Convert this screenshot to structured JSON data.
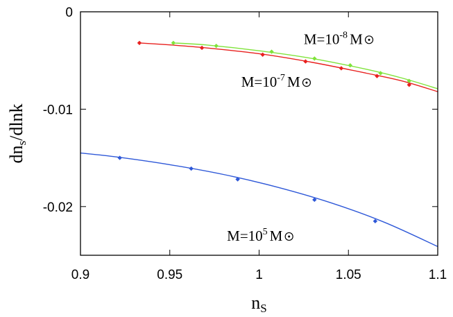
{
  "chart_data": {
    "type": "line",
    "title": "",
    "xlabel": {
      "main": "n",
      "sub": "S"
    },
    "ylabel": {
      "main": "dn",
      "sub": "s",
      "rest": "/dlnk"
    },
    "xlim": [
      0.9,
      1.1
    ],
    "ylim": [
      -0.025,
      0
    ],
    "grid": false,
    "xticks": [
      {
        "value": 0.9,
        "label": "0.9"
      },
      {
        "value": 0.95,
        "label": "0.95"
      },
      {
        "value": 1.0,
        "label": "1"
      },
      {
        "value": 1.05,
        "label": "1.05"
      },
      {
        "value": 1.1,
        "label": "1.1"
      }
    ],
    "yticks": [
      {
        "value": 0,
        "label": "0"
      },
      {
        "value": -0.01,
        "label": "-0.01"
      },
      {
        "value": -0.02,
        "label": "-0.02"
      }
    ],
    "series": [
      {
        "name": "M=10^-7 M☉",
        "color": "#e8201e",
        "curve": [
          [
            0.933,
            -0.0032
          ],
          [
            0.95,
            -0.0034
          ],
          [
            0.97,
            -0.0037
          ],
          [
            1.0,
            -0.0043
          ],
          [
            1.03,
            -0.0052
          ],
          [
            1.06,
            -0.0063
          ],
          [
            1.08,
            -0.0071
          ],
          [
            1.1,
            -0.0082
          ]
        ],
        "markers": [
          [
            0.933,
            -0.0032
          ],
          [
            0.968,
            -0.0037
          ],
          [
            1.002,
            -0.0044
          ],
          [
            1.026,
            -0.0051
          ],
          [
            1.046,
            -0.0058
          ],
          [
            1.066,
            -0.0066
          ],
          [
            1.084,
            -0.0075
          ]
        ]
      },
      {
        "name": "M=10^-8 M☉",
        "color": "#7fe33a",
        "curve": [
          [
            0.952,
            -0.0032
          ],
          [
            0.97,
            -0.0034
          ],
          [
            1.0,
            -0.004
          ],
          [
            1.03,
            -0.0048
          ],
          [
            1.06,
            -0.0059
          ],
          [
            1.08,
            -0.0068
          ],
          [
            1.1,
            -0.0079
          ]
        ],
        "markers": [
          [
            0.952,
            -0.0032
          ],
          [
            0.976,
            -0.0035
          ],
          [
            1.007,
            -0.0041
          ],
          [
            1.031,
            -0.0048
          ],
          [
            1.051,
            -0.0055
          ],
          [
            1.068,
            -0.0063
          ],
          [
            1.084,
            -0.0071
          ]
        ]
      },
      {
        "name": "M=10^5 M☉",
        "color": "#2e58d8",
        "curve": [
          [
            0.9,
            -0.0145
          ],
          [
            0.92,
            -0.0149
          ],
          [
            0.95,
            -0.0157
          ],
          [
            0.98,
            -0.0167
          ],
          [
            1.01,
            -0.018
          ],
          [
            1.04,
            -0.0196
          ],
          [
            1.07,
            -0.0216
          ],
          [
            1.1,
            -0.0241
          ]
        ],
        "markers": [
          [
            0.922,
            -0.015
          ],
          [
            0.962,
            -0.0161
          ],
          [
            0.988,
            -0.0172
          ],
          [
            1.031,
            -0.0193
          ],
          [
            1.065,
            -0.0215
          ]
        ]
      }
    ],
    "annotations": [
      {
        "id": "m-minus8",
        "base": "M=10",
        "exp": "-8",
        "unit": "M",
        "x": 1.025,
        "y": -0.0033
      },
      {
        "id": "m-minus7",
        "base": "M=10",
        "exp": "-7",
        "unit": "M",
        "x": 0.99,
        "y": -0.0077
      },
      {
        "id": "m-plus5",
        "base": "M=10",
        "exp": "5",
        "unit": "M",
        "x": 0.982,
        "y": -0.0235
      }
    ]
  }
}
